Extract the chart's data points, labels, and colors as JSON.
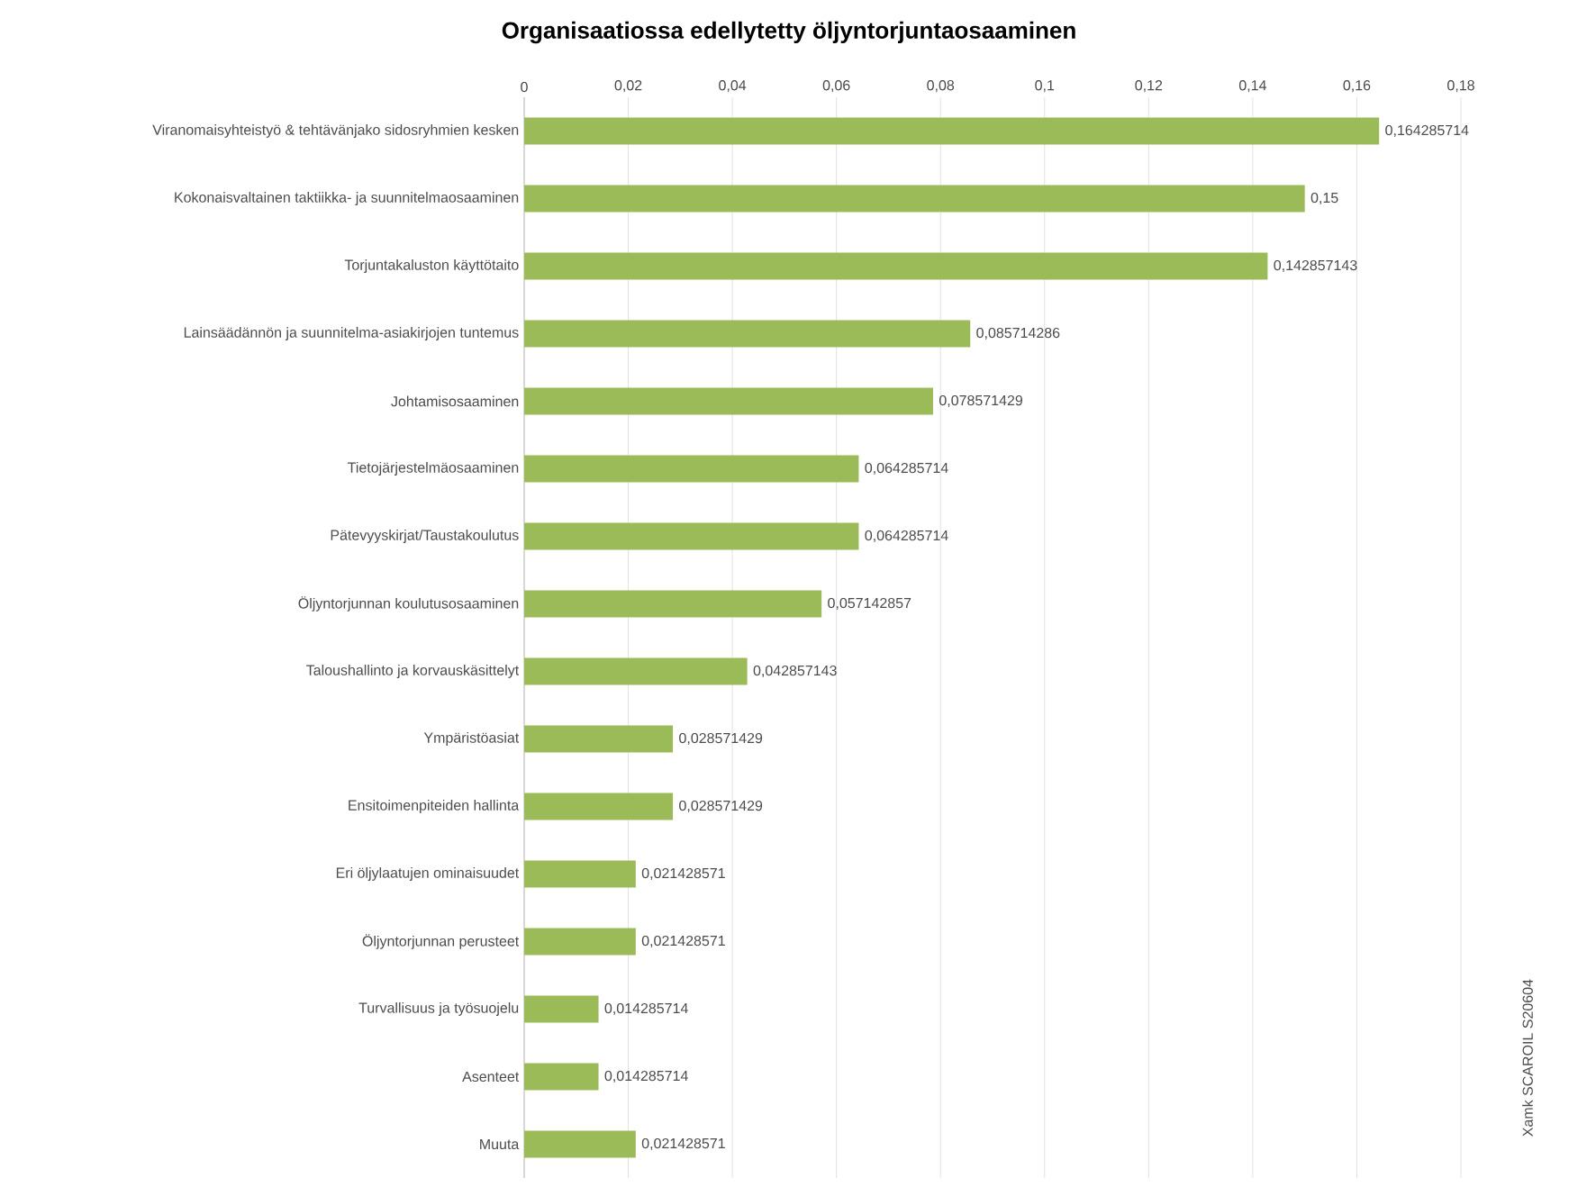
{
  "chart_data": {
    "type": "bar",
    "orientation": "horizontal",
    "title": "Organisaatiossa edellytetty öljyntorjuntaosaaminen",
    "categories": [
      "Viranomaisyhteistyö & tehtävänjako sidosryhmien kesken",
      "Kokonaisvaltainen taktiikka- ja suunnitelmaosaaminen",
      "Torjuntakaluston käyttötaito",
      "Lainsäädännön ja suunnitelma-asiakirjojen tuntemus",
      "Johtamisosaaminen",
      "Tietojärjestelmäosaaminen",
      "Pätevyyskirjat/Taustakoulutus",
      "Öljyntorjunnan koulutusosaaminen",
      "Taloushallinto ja korvauskäsittelyt",
      "Ympäristöasiat",
      "Ensitoimenpiteiden hallinta",
      "Eri öljylaatujen ominaisuudet",
      "Öljyntorjunnan perusteet",
      "Turvallisuus ja työsuojelu",
      "Asenteet",
      "Muuta"
    ],
    "values": [
      0.164285714,
      0.15,
      0.142857143,
      0.085714286,
      0.078571429,
      0.064285714,
      0.064285714,
      0.057142857,
      0.042857143,
      0.028571429,
      0.028571429,
      0.021428571,
      0.021428571,
      0.014285714,
      0.014285714,
      0.021428571
    ],
    "value_labels": [
      "0,164285714",
      "0,15",
      "0,142857143",
      "0,085714286",
      "0,078571429",
      "0,064285714",
      "0,064285714",
      "0,057142857",
      "0,042857143",
      "0,028571429",
      "0,028571429",
      "0,021428571",
      "0,021428571",
      "0,014285714",
      "0,014285714",
      "0,021428571"
    ],
    "color": "#9bbb59",
    "xlim": [
      0,
      0.18
    ],
    "xticks": [
      {
        "value": 0,
        "label": "0"
      },
      {
        "value": 0.02,
        "label": "0,02"
      },
      {
        "value": 0.04,
        "label": "0,04"
      },
      {
        "value": 0.06,
        "label": "0,06"
      },
      {
        "value": 0.08,
        "label": "0,08"
      },
      {
        "value": 0.1,
        "label": "0,1"
      },
      {
        "value": 0.12,
        "label": "0,12"
      },
      {
        "value": 0.14,
        "label": "0,14"
      },
      {
        "value": 0.16,
        "label": "0,16"
      },
      {
        "value": 0.18,
        "label": "0,18"
      }
    ],
    "grid": "x",
    "annotations": [
      "Xamk SCAROIL S20604"
    ]
  }
}
